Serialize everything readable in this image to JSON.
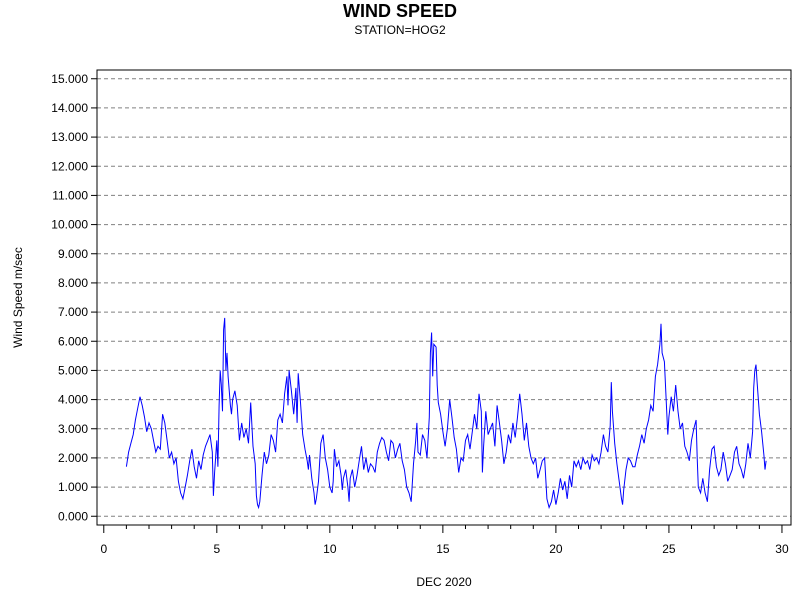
{
  "chart_data": {
    "type": "line",
    "title": "WIND SPEED",
    "subtitle": "STATION=HOG2",
    "xlabel": "DEC 2020",
    "ylabel": "Wind Speed m/sec",
    "xlim": [
      -0.3,
      30.4
    ],
    "ylim": [
      -0.3,
      15.3
    ],
    "x_ticks": [
      0,
      5,
      10,
      15,
      20,
      25,
      30
    ],
    "x_tick_labels": [
      "0",
      "5",
      "10",
      "15",
      "20",
      "25",
      "30"
    ],
    "y_ticks": [
      0,
      1,
      2,
      3,
      4,
      5,
      6,
      7,
      8,
      9,
      10,
      11,
      12,
      13,
      14,
      15
    ],
    "y_tick_labels": [
      "0.000",
      "1.000",
      "2.000",
      "3.000",
      "4.000",
      "5.000",
      "6.000",
      "7.000",
      "8.000",
      "9.000",
      "10.000",
      "11.000",
      "12.000",
      "13.000",
      "14.000",
      "15.000"
    ],
    "grid": "horizontal dashed",
    "line_color": "#0000ff",
    "series": [
      {
        "values": [
          [
            1.0,
            1.7
          ],
          [
            1.1,
            2.2
          ],
          [
            1.2,
            2.5
          ],
          [
            1.3,
            2.8
          ],
          [
            1.4,
            3.3
          ],
          [
            1.5,
            3.7
          ],
          [
            1.6,
            4.1
          ],
          [
            1.7,
            3.8
          ],
          [
            1.8,
            3.4
          ],
          [
            1.9,
            2.9
          ],
          [
            2.0,
            3.2
          ],
          [
            2.1,
            3.0
          ],
          [
            2.2,
            2.6
          ],
          [
            2.3,
            2.2
          ],
          [
            2.4,
            2.4
          ],
          [
            2.5,
            2.3
          ],
          [
            2.6,
            3.5
          ],
          [
            2.7,
            3.2
          ],
          [
            2.8,
            2.6
          ],
          [
            2.9,
            2.0
          ],
          [
            3.0,
            2.2
          ],
          [
            3.1,
            1.8
          ],
          [
            3.2,
            2.0
          ],
          [
            3.3,
            1.2
          ],
          [
            3.4,
            0.8
          ],
          [
            3.5,
            0.6
          ],
          [
            3.6,
            1.0
          ],
          [
            3.7,
            1.4
          ],
          [
            3.8,
            1.9
          ],
          [
            3.9,
            2.3
          ],
          [
            4.0,
            1.7
          ],
          [
            4.1,
            1.3
          ],
          [
            4.2,
            1.9
          ],
          [
            4.3,
            1.6
          ],
          [
            4.4,
            2.1
          ],
          [
            4.5,
            2.4
          ],
          [
            4.6,
            2.6
          ],
          [
            4.7,
            2.8
          ],
          [
            4.8,
            2.2
          ],
          [
            4.85,
            0.7
          ],
          [
            4.9,
            1.5
          ],
          [
            5.0,
            2.6
          ],
          [
            5.05,
            1.7
          ],
          [
            5.1,
            3.8
          ],
          [
            5.15,
            5.0
          ],
          [
            5.2,
            4.5
          ],
          [
            5.25,
            3.6
          ],
          [
            5.3,
            6.4
          ],
          [
            5.35,
            6.8
          ],
          [
            5.4,
            5.0
          ],
          [
            5.45,
            5.6
          ],
          [
            5.5,
            4.8
          ],
          [
            5.6,
            3.8
          ],
          [
            5.65,
            3.5
          ],
          [
            5.7,
            4.0
          ],
          [
            5.8,
            4.3
          ],
          [
            5.9,
            3.8
          ],
          [
            6.0,
            2.6
          ],
          [
            6.1,
            3.2
          ],
          [
            6.2,
            2.7
          ],
          [
            6.3,
            3.0
          ],
          [
            6.4,
            2.5
          ],
          [
            6.5,
            3.9
          ],
          [
            6.6,
            2.4
          ],
          [
            6.7,
            1.8
          ],
          [
            6.75,
            0.7
          ],
          [
            6.8,
            0.4
          ],
          [
            6.85,
            0.3
          ],
          [
            6.9,
            0.5
          ],
          [
            7.0,
            1.4
          ],
          [
            7.1,
            2.2
          ],
          [
            7.2,
            1.8
          ],
          [
            7.3,
            2.1
          ],
          [
            7.4,
            2.8
          ],
          [
            7.5,
            2.6
          ],
          [
            7.6,
            2.2
          ],
          [
            7.7,
            3.3
          ],
          [
            7.8,
            3.5
          ],
          [
            7.9,
            3.2
          ],
          [
            8.0,
            4.2
          ],
          [
            8.1,
            4.8
          ],
          [
            8.15,
            3.8
          ],
          [
            8.2,
            5.0
          ],
          [
            8.3,
            4.3
          ],
          [
            8.4,
            3.5
          ],
          [
            8.5,
            4.4
          ],
          [
            8.55,
            3.2
          ],
          [
            8.6,
            4.9
          ],
          [
            8.7,
            3.9
          ],
          [
            8.8,
            2.8
          ],
          [
            8.9,
            2.3
          ],
          [
            9.0,
            1.9
          ],
          [
            9.05,
            1.6
          ],
          [
            9.1,
            2.1
          ],
          [
            9.2,
            1.3
          ],
          [
            9.3,
            0.8
          ],
          [
            9.35,
            0.4
          ],
          [
            9.4,
            0.6
          ],
          [
            9.5,
            1.2
          ],
          [
            9.6,
            2.5
          ],
          [
            9.7,
            2.8
          ],
          [
            9.8,
            2.0
          ],
          [
            9.9,
            1.6
          ],
          [
            10.0,
            1.0
          ],
          [
            10.1,
            0.8
          ],
          [
            10.15,
            1.2
          ],
          [
            10.2,
            2.3
          ],
          [
            10.3,
            1.7
          ],
          [
            10.4,
            1.9
          ],
          [
            10.5,
            1.4
          ],
          [
            10.55,
            0.9
          ],
          [
            10.6,
            1.3
          ],
          [
            10.7,
            1.6
          ],
          [
            10.8,
            1.0
          ],
          [
            10.85,
            0.5
          ],
          [
            10.9,
            1.3
          ],
          [
            11.0,
            1.6
          ],
          [
            11.1,
            1.0
          ],
          [
            11.2,
            1.4
          ],
          [
            11.3,
            1.9
          ],
          [
            11.4,
            2.4
          ],
          [
            11.5,
            1.6
          ],
          [
            11.6,
            2.0
          ],
          [
            11.7,
            1.5
          ],
          [
            11.8,
            1.8
          ],
          [
            11.9,
            1.7
          ],
          [
            12.0,
            1.5
          ],
          [
            12.1,
            2.2
          ],
          [
            12.2,
            2.5
          ],
          [
            12.3,
            2.7
          ],
          [
            12.4,
            2.6
          ],
          [
            12.5,
            2.2
          ],
          [
            12.6,
            1.9
          ],
          [
            12.7,
            2.6
          ],
          [
            12.8,
            2.5
          ],
          [
            12.9,
            2.0
          ],
          [
            13.0,
            2.3
          ],
          [
            13.1,
            2.5
          ],
          [
            13.2,
            1.9
          ],
          [
            13.3,
            1.6
          ],
          [
            13.4,
            1.0
          ],
          [
            13.5,
            0.8
          ],
          [
            13.6,
            0.5
          ],
          [
            13.7,
            1.8
          ],
          [
            13.8,
            2.6
          ],
          [
            13.85,
            3.2
          ],
          [
            13.9,
            2.2
          ],
          [
            14.0,
            2.1
          ],
          [
            14.1,
            2.8
          ],
          [
            14.2,
            2.6
          ],
          [
            14.3,
            2.0
          ],
          [
            14.4,
            3.4
          ],
          [
            14.45,
            5.6
          ],
          [
            14.5,
            6.3
          ],
          [
            14.55,
            4.8
          ],
          [
            14.6,
            5.9
          ],
          [
            14.7,
            5.8
          ],
          [
            14.75,
            4.5
          ],
          [
            14.8,
            3.9
          ],
          [
            14.9,
            3.5
          ],
          [
            15.0,
            2.9
          ],
          [
            15.1,
            2.4
          ],
          [
            15.2,
            3.0
          ],
          [
            15.3,
            4.0
          ],
          [
            15.4,
            3.4
          ],
          [
            15.5,
            2.7
          ],
          [
            15.6,
            2.3
          ],
          [
            15.7,
            1.5
          ],
          [
            15.8,
            2.0
          ],
          [
            15.9,
            1.9
          ],
          [
            16.0,
            2.6
          ],
          [
            16.1,
            2.8
          ],
          [
            16.2,
            2.3
          ],
          [
            16.3,
            2.9
          ],
          [
            16.4,
            3.5
          ],
          [
            16.5,
            3.0
          ],
          [
            16.6,
            4.2
          ],
          [
            16.7,
            3.6
          ],
          [
            16.75,
            1.5
          ],
          [
            16.8,
            2.4
          ],
          [
            16.9,
            3.6
          ],
          [
            17.0,
            2.8
          ],
          [
            17.1,
            3.0
          ],
          [
            17.2,
            3.2
          ],
          [
            17.3,
            2.4
          ],
          [
            17.4,
            3.8
          ],
          [
            17.5,
            3.2
          ],
          [
            17.6,
            2.6
          ],
          [
            17.7,
            1.8
          ],
          [
            17.8,
            2.2
          ],
          [
            17.9,
            2.8
          ],
          [
            18.0,
            2.5
          ],
          [
            18.1,
            3.2
          ],
          [
            18.2,
            2.7
          ],
          [
            18.3,
            3.4
          ],
          [
            18.4,
            4.2
          ],
          [
            18.5,
            3.5
          ],
          [
            18.6,
            2.6
          ],
          [
            18.7,
            3.2
          ],
          [
            18.8,
            2.4
          ],
          [
            18.9,
            2.0
          ],
          [
            19.0,
            1.8
          ],
          [
            19.1,
            2.0
          ],
          [
            19.2,
            1.3
          ],
          [
            19.3,
            1.6
          ],
          [
            19.4,
            1.9
          ],
          [
            19.5,
            2.0
          ],
          [
            19.6,
            0.6
          ],
          [
            19.7,
            0.3
          ],
          [
            19.8,
            0.5
          ],
          [
            19.9,
            0.9
          ],
          [
            20.0,
            0.4
          ],
          [
            20.1,
            0.8
          ],
          [
            20.2,
            1.3
          ],
          [
            20.3,
            0.9
          ],
          [
            20.4,
            1.2
          ],
          [
            20.5,
            0.6
          ],
          [
            20.6,
            1.4
          ],
          [
            20.7,
            1.0
          ],
          [
            20.8,
            1.9
          ],
          [
            20.9,
            1.7
          ],
          [
            21.0,
            1.9
          ],
          [
            21.1,
            1.6
          ],
          [
            21.2,
            2.0
          ],
          [
            21.3,
            1.8
          ],
          [
            21.4,
            1.9
          ],
          [
            21.5,
            1.6
          ],
          [
            21.6,
            2.1
          ],
          [
            21.7,
            1.9
          ],
          [
            21.8,
            2.0
          ],
          [
            21.9,
            1.8
          ],
          [
            22.0,
            2.2
          ],
          [
            22.1,
            2.8
          ],
          [
            22.2,
            2.4
          ],
          [
            22.3,
            2.2
          ],
          [
            22.4,
            3.1
          ],
          [
            22.45,
            4.6
          ],
          [
            22.5,
            3.6
          ],
          [
            22.6,
            2.5
          ],
          [
            22.7,
            1.8
          ],
          [
            22.8,
            1.2
          ],
          [
            22.9,
            0.6
          ],
          [
            22.95,
            0.4
          ],
          [
            23.0,
            0.9
          ],
          [
            23.1,
            1.6
          ],
          [
            23.2,
            2.0
          ],
          [
            23.3,
            1.9
          ],
          [
            23.4,
            1.7
          ],
          [
            23.5,
            1.7
          ],
          [
            23.6,
            2.1
          ],
          [
            23.7,
            2.4
          ],
          [
            23.8,
            2.8
          ],
          [
            23.9,
            2.5
          ],
          [
            24.0,
            3.0
          ],
          [
            24.1,
            3.3
          ],
          [
            24.2,
            3.8
          ],
          [
            24.3,
            3.6
          ],
          [
            24.4,
            4.8
          ],
          [
            24.5,
            5.2
          ],
          [
            24.6,
            5.9
          ],
          [
            24.65,
            6.6
          ],
          [
            24.7,
            5.6
          ],
          [
            24.8,
            5.3
          ],
          [
            24.9,
            3.6
          ],
          [
            24.95,
            2.8
          ],
          [
            25.0,
            3.4
          ],
          [
            25.1,
            4.1
          ],
          [
            25.2,
            3.6
          ],
          [
            25.3,
            4.5
          ],
          [
            25.4,
            3.6
          ],
          [
            25.5,
            3.0
          ],
          [
            25.6,
            3.2
          ],
          [
            25.7,
            2.4
          ],
          [
            25.8,
            2.2
          ],
          [
            25.9,
            1.9
          ],
          [
            26.0,
            2.6
          ],
          [
            26.1,
            3.0
          ],
          [
            26.2,
            3.3
          ],
          [
            26.25,
            2.0
          ],
          [
            26.3,
            1.0
          ],
          [
            26.4,
            0.8
          ],
          [
            26.5,
            1.3
          ],
          [
            26.6,
            0.8
          ],
          [
            26.7,
            0.5
          ],
          [
            26.8,
            1.6
          ],
          [
            26.9,
            2.3
          ],
          [
            27.0,
            2.4
          ],
          [
            27.1,
            1.7
          ],
          [
            27.2,
            1.4
          ],
          [
            27.3,
            1.6
          ],
          [
            27.4,
            2.2
          ],
          [
            27.5,
            1.8
          ],
          [
            27.6,
            1.2
          ],
          [
            27.7,
            1.4
          ],
          [
            27.8,
            1.6
          ],
          [
            27.9,
            2.2
          ],
          [
            28.0,
            2.4
          ],
          [
            28.1,
            1.8
          ],
          [
            28.2,
            1.6
          ],
          [
            28.3,
            1.3
          ],
          [
            28.4,
            1.8
          ],
          [
            28.5,
            2.5
          ],
          [
            28.6,
            2.0
          ],
          [
            28.7,
            2.9
          ],
          [
            28.75,
            4.4
          ],
          [
            28.8,
            5.0
          ],
          [
            28.85,
            5.2
          ],
          [
            28.9,
            4.6
          ],
          [
            29.0,
            3.5
          ],
          [
            29.1,
            2.9
          ],
          [
            29.2,
            2.1
          ],
          [
            29.25,
            1.6
          ],
          [
            29.3,
            1.9
          ]
        ]
      }
    ]
  }
}
